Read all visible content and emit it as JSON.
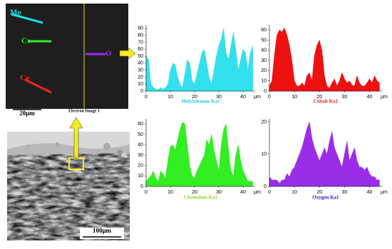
{
  "images": {
    "top": {
      "labels": [
        "Mo",
        "Cr",
        "Co",
        "O"
      ],
      "scale": "20μm",
      "caption": "Electron Image 1"
    },
    "bottom": {
      "scale": "100μm"
    }
  },
  "chart_data": [
    {
      "type": "area",
      "title": "Molybdenum Ka1",
      "title_color": "#27c8d8",
      "xlabel": "μm",
      "color": "#33e0ee",
      "x": [
        0,
        1,
        2,
        3,
        4,
        5,
        6,
        7,
        8,
        9,
        10,
        11,
        12,
        13,
        14,
        15,
        16,
        17,
        18,
        19,
        20,
        21,
        22,
        23,
        24,
        25,
        26,
        27,
        28,
        29,
        30,
        31,
        32,
        33,
        34,
        35,
        36,
        37,
        38,
        39,
        40,
        41,
        42,
        43,
        44
      ],
      "values": [
        50,
        45,
        10,
        5,
        3,
        2,
        5,
        3,
        5,
        10,
        30,
        40,
        38,
        20,
        10,
        5,
        25,
        45,
        40,
        15,
        10,
        25,
        40,
        55,
        60,
        40,
        20,
        10,
        30,
        50,
        65,
        75,
        90,
        55,
        45,
        65,
        85,
        60,
        30,
        45,
        60,
        55,
        30,
        55,
        65
      ],
      "xlim": [
        0,
        45
      ],
      "xticks": [
        0,
        10,
        20,
        30,
        40
      ],
      "ylim": [
        0,
        95
      ],
      "yticks": [
        0,
        10,
        20,
        30,
        40,
        50,
        60,
        70,
        80,
        90
      ]
    },
    {
      "type": "area",
      "title": "Cobalt Ka1",
      "title_color": "#e02020",
      "xlabel": "μm",
      "color": "#ee1111",
      "x": [
        0,
        1,
        2,
        3,
        4,
        5,
        6,
        7,
        8,
        9,
        10,
        11,
        12,
        13,
        14,
        15,
        16,
        17,
        18,
        19,
        20,
        21,
        22,
        23,
        24,
        25,
        26,
        27,
        28,
        29,
        30,
        31,
        32,
        33,
        34,
        35,
        36,
        37,
        38,
        39,
        40,
        41,
        42,
        43,
        44
      ],
      "values": [
        5,
        10,
        35,
        55,
        60,
        58,
        62,
        55,
        45,
        30,
        10,
        5,
        5,
        8,
        5,
        15,
        18,
        10,
        35,
        45,
        50,
        40,
        15,
        5,
        3,
        8,
        12,
        5,
        10,
        18,
        12,
        8,
        10,
        6,
        5,
        15,
        8,
        5,
        5,
        8,
        12,
        8,
        15,
        10,
        8
      ],
      "xlim": [
        0,
        45
      ],
      "xticks": [
        0,
        10,
        20,
        30,
        40
      ],
      "ylim": [
        0,
        65
      ],
      "yticks": [
        0,
        10,
        20,
        30,
        40,
        50,
        60
      ]
    },
    {
      "type": "area",
      "title": "Chromium Ka1",
      "title_color": "#8fd82a",
      "xlabel": "μm",
      "color": "#33ee22",
      "x": [
        0,
        1,
        2,
        3,
        4,
        5,
        6,
        7,
        8,
        9,
        10,
        11,
        12,
        13,
        14,
        15,
        16,
        17,
        18,
        19,
        20,
        21,
        22,
        23,
        24,
        25,
        26,
        27,
        28,
        29,
        30,
        31,
        32,
        33,
        34,
        35,
        36,
        37,
        38,
        39,
        40,
        41,
        42,
        43,
        44
      ],
      "values": [
        5,
        8,
        10,
        15,
        8,
        5,
        15,
        12,
        8,
        25,
        38,
        40,
        35,
        45,
        55,
        62,
        60,
        40,
        20,
        10,
        8,
        15,
        20,
        25,
        30,
        45,
        40,
        50,
        35,
        25,
        15,
        40,
        55,
        60,
        35,
        15,
        10,
        30,
        40,
        25,
        15,
        10,
        5,
        5,
        5
      ],
      "xlim": [
        0,
        45
      ],
      "xticks": [
        0,
        10,
        20,
        30,
        40
      ],
      "ylim": [
        0,
        65
      ],
      "yticks": [
        0,
        10,
        20,
        30,
        40,
        50,
        60
      ]
    },
    {
      "type": "area",
      "title": "Oxygen Ka1",
      "title_color": "#2020c0",
      "xlabel": "μm",
      "color": "#9a2ee8",
      "x": [
        0,
        1,
        2,
        3,
        4,
        5,
        6,
        7,
        8,
        9,
        10,
        11,
        12,
        13,
        14,
        15,
        16,
        17,
        18,
        19,
        20,
        21,
        22,
        23,
        24,
        25,
        26,
        27,
        28,
        29,
        30,
        31,
        32,
        33,
        34,
        35,
        36,
        37,
        38,
        39,
        40,
        41,
        42,
        43,
        44
      ],
      "values": [
        3,
        2,
        2,
        2,
        1,
        2,
        2,
        4,
        3,
        5,
        6,
        8,
        10,
        12,
        15,
        18,
        20,
        15,
        12,
        10,
        8,
        10,
        12,
        10,
        14,
        17,
        12,
        10,
        8,
        6,
        10,
        14,
        8,
        10,
        12,
        8,
        6,
        6,
        5,
        6,
        4,
        3,
        3,
        2,
        2
      ],
      "xlim": [
        0,
        45
      ],
      "xticks": [
        0,
        10,
        20,
        30,
        40
      ],
      "ylim": [
        0,
        21
      ],
      "yticks": [
        0,
        10,
        20
      ]
    }
  ]
}
